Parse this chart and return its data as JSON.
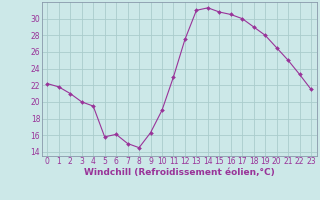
{
  "hours": [
    0,
    1,
    2,
    3,
    4,
    5,
    6,
    7,
    8,
    9,
    10,
    11,
    12,
    13,
    14,
    15,
    16,
    17,
    18,
    19,
    20,
    21,
    22,
    23
  ],
  "values": [
    22.2,
    21.8,
    21.0,
    20.0,
    19.5,
    15.8,
    16.1,
    15.0,
    14.5,
    16.3,
    19.0,
    23.0,
    27.5,
    31.0,
    31.3,
    30.8,
    30.5,
    30.0,
    29.0,
    28.0,
    26.5,
    25.0,
    23.3,
    21.5
  ],
  "line_color": "#993399",
  "marker": "D",
  "marker_size": 2.0,
  "bg_color": "#cce8e8",
  "grid_color": "#aacccc",
  "spine_color": "#8899aa",
  "xlabel": "Windchill (Refroidissement éolien,°C)",
  "xlabel_color": "#993399",
  "xlim": [
    -0.5,
    23.5
  ],
  "ylim": [
    13.5,
    32.0
  ],
  "yticks": [
    14,
    16,
    18,
    20,
    22,
    24,
    26,
    28,
    30
  ],
  "xticks": [
    0,
    1,
    2,
    3,
    4,
    5,
    6,
    7,
    8,
    9,
    10,
    11,
    12,
    13,
    14,
    15,
    16,
    17,
    18,
    19,
    20,
    21,
    22,
    23
  ],
  "tick_label_size": 5.5,
  "xlabel_size": 6.5
}
